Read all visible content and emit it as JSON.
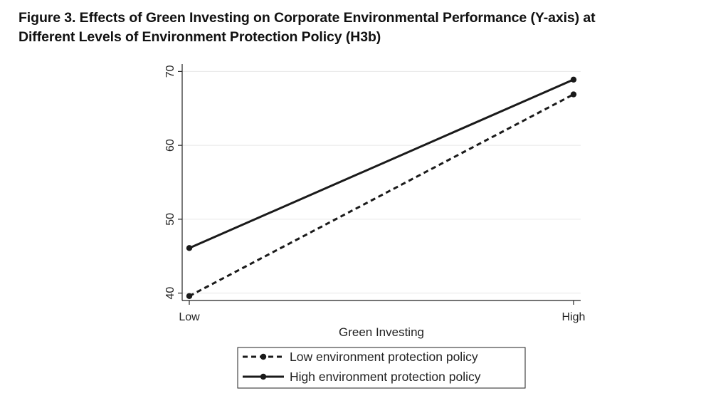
{
  "figure": {
    "title_line1": "Figure 3.  Effects of Green Investing on Corporate Environmental Performance (Y-axis) at",
    "title_line2": "Different Levels of Environment Protection Policy (H3b)"
  },
  "chart_data": {
    "type": "line",
    "categories": [
      "Low",
      "High"
    ],
    "xlabel": "Green Investing",
    "ylabel": "",
    "ylim": [
      39,
      71
    ],
    "yticks": [
      40,
      50,
      60,
      70
    ],
    "grid": true,
    "legend_position": "bottom-center",
    "series": [
      {
        "name": "Low environment protection policy",
        "values": [
          39.6,
          66.9
        ],
        "style": "dashed",
        "color": "#1a1a1a"
      },
      {
        "name": "High environment protection policy",
        "values": [
          46.1,
          68.9
        ],
        "style": "solid",
        "color": "#1a1a1a"
      }
    ]
  }
}
